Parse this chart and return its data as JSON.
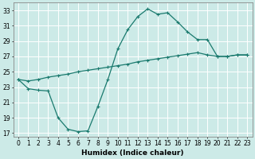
{
  "xlabel": "Humidex (Indice chaleur)",
  "background_color": "#cceae7",
  "grid_color": "#ffffff",
  "line_color": "#1a7a6e",
  "xlim": [
    -0.5,
    23.5
  ],
  "ylim": [
    16.5,
    34
  ],
  "yticks": [
    17,
    19,
    21,
    23,
    25,
    27,
    29,
    31,
    33
  ],
  "xticks": [
    0,
    1,
    2,
    3,
    4,
    5,
    6,
    7,
    8,
    9,
    10,
    11,
    12,
    13,
    14,
    15,
    16,
    17,
    18,
    19,
    20,
    21,
    22,
    23
  ],
  "series1_x": [
    0,
    1,
    2,
    3,
    4,
    5,
    6,
    7,
    8,
    9,
    10,
    11,
    12,
    13,
    14,
    15,
    16,
    17,
    18,
    19,
    20,
    21,
    22,
    23
  ],
  "series1_y": [
    24.0,
    22.8,
    22.6,
    22.5,
    19.0,
    17.5,
    17.2,
    17.3,
    20.5,
    24.0,
    28.0,
    30.5,
    32.2,
    33.2,
    32.5,
    32.7,
    31.5,
    30.2,
    29.2,
    29.2,
    27.0,
    27.0,
    27.2,
    27.2
  ],
  "series2_x": [
    0,
    1,
    2,
    3,
    4,
    5,
    6,
    7,
    8,
    9,
    10,
    11,
    12,
    13,
    14,
    15,
    16,
    17,
    18,
    19,
    20,
    21,
    22,
    23
  ],
  "series2_y": [
    24.0,
    23.8,
    24.0,
    24.3,
    24.5,
    24.7,
    25.0,
    25.2,
    25.4,
    25.6,
    25.8,
    26.0,
    26.3,
    26.5,
    26.7,
    26.9,
    27.1,
    27.3,
    27.5,
    27.2,
    27.0,
    27.0,
    27.2,
    27.2
  ],
  "axis_fontsize": 6.5,
  "tick_fontsize": 5.5
}
